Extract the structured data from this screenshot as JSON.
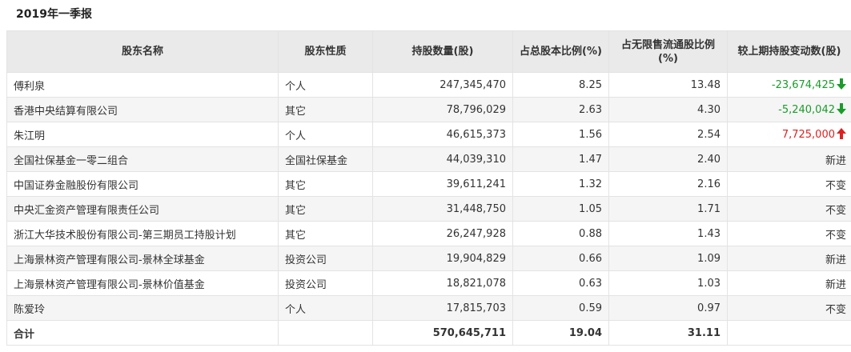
{
  "title": "2019年一季报",
  "headers": {
    "name": "股东名称",
    "type": "股东性质",
    "shares": "持股数量(股)",
    "pct_total": "占总股本比例(%)",
    "pct_float": "占无限售流通股比例(%)",
    "change": "较上期持股变动数(股)"
  },
  "rows": [
    {
      "name": "傅利泉",
      "type": "个人",
      "shares": "247,345,470",
      "pct_total": "8.25",
      "pct_float": "13.48",
      "change": "-23,674,425",
      "dir": "down"
    },
    {
      "name": "香港中央结算有限公司",
      "type": "其它",
      "shares": "78,796,029",
      "pct_total": "2.63",
      "pct_float": "4.30",
      "change": "-5,240,042",
      "dir": "down"
    },
    {
      "name": "朱江明",
      "type": "个人",
      "shares": "46,615,373",
      "pct_total": "1.56",
      "pct_float": "2.54",
      "change": "7,725,000",
      "dir": "up"
    },
    {
      "name": "全国社保基金一零二组合",
      "type": "全国社保基金",
      "shares": "44,039,310",
      "pct_total": "1.47",
      "pct_float": "2.40",
      "change": "新进",
      "dir": "none"
    },
    {
      "name": "中国证券金融股份有限公司",
      "type": "其它",
      "shares": "39,611,241",
      "pct_total": "1.32",
      "pct_float": "2.16",
      "change": "不变",
      "dir": "none"
    },
    {
      "name": "中央汇金资产管理有限责任公司",
      "type": "其它",
      "shares": "31,448,750",
      "pct_total": "1.05",
      "pct_float": "1.71",
      "change": "不变",
      "dir": "none"
    },
    {
      "name": "浙江大华技术股份有限公司-第三期员工持股计划",
      "type": "其它",
      "shares": "26,247,928",
      "pct_total": "0.88",
      "pct_float": "1.43",
      "change": "不变",
      "dir": "none"
    },
    {
      "name": "上海景林资产管理有限公司-景林全球基金",
      "type": "投资公司",
      "shares": "19,904,829",
      "pct_total": "0.66",
      "pct_float": "1.09",
      "change": "新进",
      "dir": "none"
    },
    {
      "name": "上海景林资产管理有限公司-景林价值基金",
      "type": "投资公司",
      "shares": "18,821,078",
      "pct_total": "0.63",
      "pct_float": "1.03",
      "change": "新进",
      "dir": "none"
    },
    {
      "name": "陈爱玲",
      "type": "个人",
      "shares": "17,815,703",
      "pct_total": "0.59",
      "pct_float": "0.97",
      "change": "不变",
      "dir": "none"
    }
  ],
  "total": {
    "name": "合计",
    "shares": "570,645,711",
    "pct_total": "19.04",
    "pct_float": "31.11"
  },
  "colors": {
    "down": "#1a9c2a",
    "up": "#e02020",
    "header_bg": "#eaeaea"
  },
  "icons": {
    "down": "arrow-down-icon",
    "up": "arrow-up-icon"
  }
}
